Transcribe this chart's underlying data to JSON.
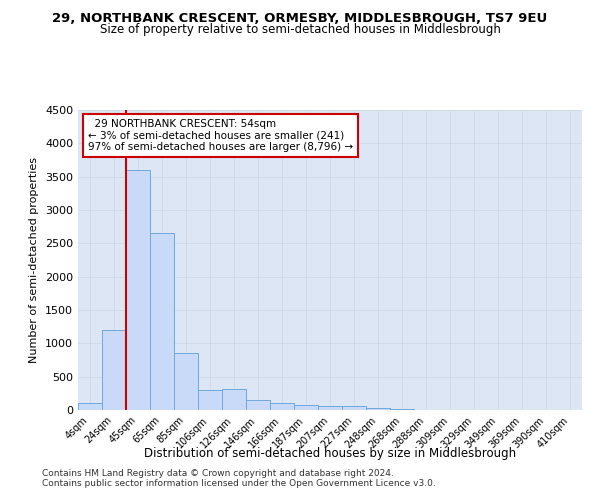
{
  "title": "29, NORTHBANK CRESCENT, ORMESBY, MIDDLESBROUGH, TS7 9EU",
  "subtitle": "Size of property relative to semi-detached houses in Middlesbrough",
  "xlabel": "Distribution of semi-detached houses by size in Middlesbrough",
  "ylabel": "Number of semi-detached properties",
  "categories": [
    "4sqm",
    "24sqm",
    "45sqm",
    "65sqm",
    "85sqm",
    "106sqm",
    "126sqm",
    "146sqm",
    "166sqm",
    "187sqm",
    "207sqm",
    "227sqm",
    "248sqm",
    "268sqm",
    "288sqm",
    "309sqm",
    "329sqm",
    "349sqm",
    "369sqm",
    "390sqm",
    "410sqm"
  ],
  "values": [
    100,
    1200,
    3600,
    2650,
    850,
    300,
    310,
    150,
    100,
    80,
    60,
    55,
    35,
    10,
    5,
    3,
    2,
    1,
    1,
    0,
    0
  ],
  "bar_color": "#c9daf8",
  "bar_edge_color": "#6fa8dc",
  "property_size": 54,
  "property_label": "29 NORTHBANK CRESCENT: 54sqm",
  "pct_smaller": 3,
  "count_smaller": 241,
  "pct_larger": 97,
  "count_larger": 8796,
  "annotation_box_color": "#ffffff",
  "annotation_box_edge": "#cc0000",
  "red_line_color": "#cc0000",
  "ylim": [
    0,
    4500
  ],
  "yticks": [
    0,
    500,
    1000,
    1500,
    2000,
    2500,
    3000,
    3500,
    4000,
    4500
  ],
  "background_color": "#ffffff",
  "grid_color": "#d0d8e8",
  "footnote1": "Contains HM Land Registry data © Crown copyright and database right 2024.",
  "footnote2": "Contains public sector information licensed under the Open Government Licence v3.0."
}
